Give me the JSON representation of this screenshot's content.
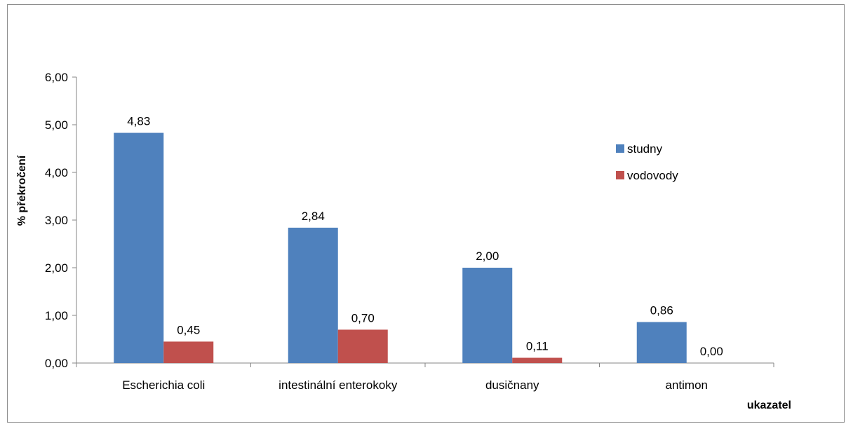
{
  "chart_data": {
    "type": "bar",
    "title": "",
    "xlabel": "ukazatel",
    "ylabel": "% překročení",
    "ylim": [
      0,
      6
    ],
    "yticks": [
      "0,00",
      "1,00",
      "2,00",
      "3,00",
      "4,00",
      "5,00",
      "6,00"
    ],
    "categories": [
      "Escherichia coli",
      "intestinální enterokoky",
      "dusičnany",
      "antimon"
    ],
    "series": [
      {
        "name": "studny",
        "color": "#4f81bd",
        "values": [
          4.83,
          2.84,
          2.0,
          0.86
        ],
        "labels": [
          "4,83",
          "2,84",
          "2,00",
          "0,86"
        ]
      },
      {
        "name": "vodovody",
        "color": "#c0504d",
        "values": [
          0.45,
          0.7,
          0.11,
          0.0
        ],
        "labels": [
          "0,45",
          "0,70",
          "0,11",
          "0,00"
        ]
      }
    ],
    "grid": false,
    "legend_position": "right"
  }
}
